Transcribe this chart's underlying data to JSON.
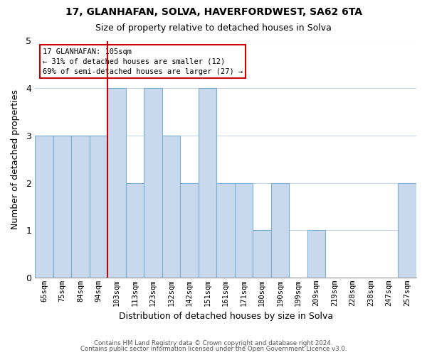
{
  "title1": "17, GLANHAFAN, SOLVA, HAVERFORDWEST, SA62 6TA",
  "title2": "Size of property relative to detached houses in Solva",
  "xlabel": "Distribution of detached houses by size in Solva",
  "ylabel": "Number of detached properties",
  "categories": [
    "65sqm",
    "75sqm",
    "84sqm",
    "94sqm",
    "103sqm",
    "113sqm",
    "123sqm",
    "132sqm",
    "142sqm",
    "151sqm",
    "161sqm",
    "171sqm",
    "180sqm",
    "190sqm",
    "199sqm",
    "209sqm",
    "219sqm",
    "228sqm",
    "238sqm",
    "247sqm",
    "257sqm"
  ],
  "values": [
    3,
    3,
    3,
    3,
    4,
    2,
    4,
    3,
    2,
    4,
    2,
    2,
    1,
    2,
    0,
    1,
    0,
    0,
    0,
    0,
    2
  ],
  "bar_color": "#c8d9ed",
  "bar_edge_color": "#7bafd4",
  "red_line_index": 4,
  "red_line_color": "#cc0000",
  "annotation_title": "17 GLANHAFAN: 105sqm",
  "annotation_line1": "← 31% of detached houses are smaller (12)",
  "annotation_line2": "69% of semi-detached houses are larger (27) →",
  "annotation_box_edge": "#cc0000",
  "ylim": [
    0,
    5
  ],
  "yticks": [
    0,
    1,
    2,
    3,
    4,
    5
  ],
  "footnote1": "Contains HM Land Registry data © Crown copyright and database right 2024.",
  "footnote2": "Contains public sector information licensed under the Open Government Licence v3.0.",
  "background_color": "#ffffff",
  "grid_color": "#c8d4e8"
}
